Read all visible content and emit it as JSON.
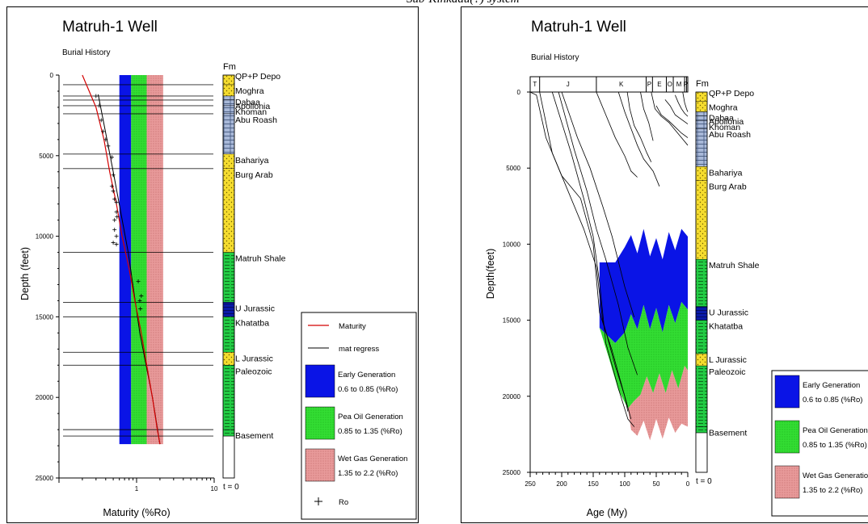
{
  "caption": "Sub-Kinkadu(?) system",
  "colors": {
    "early": "#0a14e6",
    "peak_oil": "#33dd33",
    "wet_gas": "#e89a9a",
    "maturity": "#d40000",
    "sand": "#f5dc2e",
    "carbonate": "#a8b8d8",
    "shale": "#22cc44",
    "jurassic_dark": "#0a1aa8"
  },
  "formation_column": {
    "header": "Fm",
    "footer": "t = 0",
    "formations": [
      {
        "name": "QP+P Depo",
        "top": 0,
        "base": 600,
        "lith": "sand"
      },
      {
        "name": "Moghra",
        "top": 600,
        "base": 1300,
        "lith": "sand"
      },
      {
        "name": "Dabaa",
        "top": 1300,
        "base": 1550,
        "lith": "carbonate"
      },
      {
        "name": "Apollonia",
        "top": 1550,
        "base": 1900,
        "lith": "carbonate"
      },
      {
        "name": "Khoman",
        "top": 1900,
        "base": 2400,
        "lith": "carbonate"
      },
      {
        "name": "Abu Roash",
        "top": 2400,
        "base": 4900,
        "lith": "carbonate"
      },
      {
        "name": "Bahariya",
        "top": 4900,
        "base": 5800,
        "lith": "sand"
      },
      {
        "name": "Burg Arab",
        "top": 5800,
        "base": 11000,
        "lith": "sand"
      },
      {
        "name": "Matruh Shale",
        "top": 11000,
        "base": 14100,
        "lith": "shale"
      },
      {
        "name": "U Jurassic",
        "top": 14100,
        "base": 15000,
        "lith": "jurassic_dark"
      },
      {
        "name": "Khatatba",
        "top": 15000,
        "base": 17200,
        "lith": "shale"
      },
      {
        "name": "L Jurassic",
        "top": 17200,
        "base": 18000,
        "lith": "sand"
      },
      {
        "name": "Paleozoic",
        "top": 18000,
        "base": 22000,
        "lith": "shale"
      },
      {
        "name": "Basement",
        "top": 22000,
        "base": 22400,
        "lith": "shale"
      }
    ]
  },
  "chart_data": [
    {
      "type": "line",
      "title": "Matruh-1 Well",
      "subtitle": "Burial History",
      "xlabel": "Maturity (%Ro)",
      "ylabel": "Depth (feet)",
      "x_scale": "log",
      "xlim": [
        0.1,
        10
      ],
      "ylim": [
        25000,
        0
      ],
      "x_ticks": [
        "1",
        "10"
      ],
      "y_ticks": [
        "0",
        "5000",
        "10000",
        "15000",
        "20000",
        "25000"
      ],
      "bands": [
        {
          "name": "Early Generation",
          "range": "0.6 to 0.85 (%Ro)",
          "x0": 0.6,
          "x1": 0.85,
          "color": "#0a14e6"
        },
        {
          "name": "Pea Oil Generation",
          "range": "0.85 to 1.35 (%Ro)",
          "x0": 0.85,
          "x1": 1.35,
          "color": "#33dd33"
        },
        {
          "name": "Wet Gas Generation",
          "range": "1.35 to 2.2 (%Ro)",
          "x0": 1.35,
          "x1": 2.2,
          "color": "#e89a9a"
        }
      ],
      "formation_tops": [
        0,
        600,
        1300,
        1550,
        1900,
        2400,
        4900,
        5800,
        11000,
        14100,
        15000,
        17200,
        18000,
        22000,
        22400
      ],
      "series": [
        {
          "name": "Maturity",
          "kind": "line",
          "color": "#d40000",
          "points": [
            [
              0.2,
              0
            ],
            [
              0.3,
              2000
            ],
            [
              0.38,
              4000
            ],
            [
              0.45,
              6000
            ],
            [
              0.55,
              8000
            ],
            [
              0.65,
              10000
            ],
            [
              0.8,
              12000
            ],
            [
              0.95,
              14000
            ],
            [
              1.15,
              16000
            ],
            [
              1.35,
              18000
            ],
            [
              1.6,
              20000
            ],
            [
              1.85,
              22000
            ],
            [
              2.0,
              22900
            ]
          ]
        },
        {
          "name": "mat regress",
          "kind": "line",
          "color": "#000000",
          "points": [
            [
              0.32,
              1200
            ],
            [
              0.5,
              6000
            ],
            [
              0.78,
              11000
            ],
            [
              1.1,
              16000
            ],
            [
              1.6,
              20000
            ],
            [
              2.0,
              22900
            ]
          ]
        },
        {
          "name": "Ro",
          "kind": "scatter",
          "color": "#000000",
          "points": [
            [
              0.3,
              1300
            ],
            [
              0.33,
              1900
            ],
            [
              0.35,
              2800
            ],
            [
              0.37,
              3500
            ],
            [
              0.4,
              4000
            ],
            [
              0.43,
              4400
            ],
            [
              0.48,
              5100
            ],
            [
              0.5,
              6200
            ],
            [
              0.48,
              6900
            ],
            [
              0.5,
              7200
            ],
            [
              0.52,
              7700
            ],
            [
              0.55,
              7900
            ],
            [
              0.55,
              8500
            ],
            [
              0.56,
              8800
            ],
            [
              0.52,
              9000
            ],
            [
              0.52,
              9600
            ],
            [
              0.55,
              10000
            ],
            [
              0.5,
              10400
            ],
            [
              0.55,
              10500
            ],
            [
              1.05,
              12800
            ],
            [
              1.15,
              13700
            ],
            [
              1.1,
              14000
            ],
            [
              1.12,
              14500
            ]
          ]
        }
      ],
      "legend": [
        "Maturity",
        "mat regress",
        "Early Generation",
        "Pea Oil Generation",
        "Wet Gas Generation",
        "Ro"
      ],
      "legend_position": "bottom-right"
    },
    {
      "type": "area",
      "title": "Matruh-1 Well",
      "subtitle": "Burial History",
      "xlabel": "Age (My)",
      "ylabel": "Depth(feet)",
      "xlim": [
        250,
        0
      ],
      "ylim": [
        25000,
        0
      ],
      "x_ticks": [
        "250",
        "200",
        "150",
        "100",
        "50",
        "0"
      ],
      "y_ticks": [
        "0",
        "5000",
        "10000",
        "15000",
        "20000",
        "25000"
      ],
      "periods": [
        {
          "label": "T",
          "start": 250,
          "end": 235
        },
        {
          "label": "J",
          "start": 235,
          "end": 145
        },
        {
          "label": "K",
          "start": 145,
          "end": 66
        },
        {
          "label": "P",
          "start": 66,
          "end": 56
        },
        {
          "label": "E",
          "start": 56,
          "end": 34
        },
        {
          "label": "O",
          "start": 34,
          "end": 23
        },
        {
          "label": "M",
          "start": 23,
          "end": 5
        },
        {
          "label": "P",
          "start": 5,
          "end": 2
        },
        {
          "label": "",
          "start": 2,
          "end": 0
        }
      ],
      "zones": [
        {
          "name": "Early Generation",
          "color": "#0a14e6",
          "top": [
            [
              140,
              11200
            ],
            [
              115,
              11200
            ],
            [
              100,
              10200
            ],
            [
              90,
              9400
            ],
            [
              80,
              10600
            ],
            [
              70,
              9000
            ],
            [
              60,
              10800
            ],
            [
              50,
              9600
            ],
            [
              40,
              11000
            ],
            [
              30,
              9200
            ],
            [
              20,
              10400
            ],
            [
              10,
              9000
            ],
            [
              0,
              9500
            ]
          ],
          "base": [
            [
              140,
              15500
            ],
            [
              115,
              16500
            ],
            [
              100,
              15800
            ],
            [
              90,
              14600
            ],
            [
              80,
              15600
            ],
            [
              70,
              14000
            ],
            [
              60,
              15600
            ],
            [
              50,
              14200
            ],
            [
              40,
              15800
            ],
            [
              30,
              14000
            ],
            [
              20,
              15200
            ],
            [
              10,
              13800
            ],
            [
              0,
              14300
            ]
          ]
        },
        {
          "name": "Pea Oil Generation",
          "color": "#33dd33",
          "top": [
            [
              140,
              15500
            ],
            [
              115,
              16500
            ],
            [
              100,
              15800
            ],
            [
              90,
              14600
            ],
            [
              80,
              15600
            ],
            [
              70,
              14000
            ],
            [
              60,
              15600
            ],
            [
              50,
              14200
            ],
            [
              40,
              15800
            ],
            [
              30,
              14000
            ],
            [
              20,
              15200
            ],
            [
              10,
              13800
            ],
            [
              0,
              14300
            ]
          ],
          "base": [
            [
              140,
              15500
            ],
            [
              125,
              17500
            ],
            [
              110,
              19600
            ],
            [
              95,
              20800
            ],
            [
              85,
              20300
            ],
            [
              75,
              19900
            ],
            [
              65,
              18700
            ],
            [
              55,
              19800
            ],
            [
              45,
              18500
            ],
            [
              35,
              19800
            ],
            [
              25,
              18300
            ],
            [
              15,
              19500
            ],
            [
              5,
              18000
            ],
            [
              0,
              18300
            ]
          ]
        },
        {
          "name": "Wet Gas Generation",
          "color": "#e89a9a",
          "top": [
            [
              95,
              20800
            ],
            [
              85,
              20300
            ],
            [
              75,
              19900
            ],
            [
              65,
              18700
            ],
            [
              55,
              19800
            ],
            [
              45,
              18500
            ],
            [
              35,
              19800
            ],
            [
              25,
              18300
            ],
            [
              15,
              19500
            ],
            [
              5,
              18000
            ],
            [
              0,
              18300
            ]
          ],
          "base": [
            [
              95,
              20800
            ],
            [
              90,
              22200
            ],
            [
              80,
              22600
            ],
            [
              70,
              21600
            ],
            [
              60,
              22900
            ],
            [
              50,
              21500
            ],
            [
              40,
              22800
            ],
            [
              30,
              21400
            ],
            [
              20,
              22400
            ],
            [
              10,
              21800
            ],
            [
              0,
              22000
            ]
          ]
        }
      ],
      "burial_curves": [
        [
          [
            250,
            0
          ],
          [
            240,
            200
          ],
          [
            225,
            3000
          ],
          [
            200,
            5500
          ],
          [
            170,
            7000
          ],
          [
            150,
            10000
          ],
          [
            140,
            14500
          ],
          [
            120,
            17000
          ],
          [
            100,
            20000
          ],
          [
            95,
            21000
          ]
        ],
        [
          [
            235,
            0
          ],
          [
            215,
            4000
          ],
          [
            195,
            6000
          ],
          [
            165,
            9000
          ],
          [
            145,
            11500
          ],
          [
            135,
            15000
          ],
          [
            115,
            18000
          ],
          [
            100,
            20000
          ],
          [
            90,
            21500
          ]
        ],
        [
          [
            215,
            0
          ],
          [
            185,
            4000
          ],
          [
            165,
            7000
          ],
          [
            150,
            9500
          ],
          [
            140,
            12500
          ],
          [
            130,
            16500
          ],
          [
            110,
            19500
          ],
          [
            95,
            21500
          ],
          [
            85,
            22000
          ]
        ],
        [
          [
            205,
            0
          ],
          [
            180,
            3800
          ],
          [
            160,
            6500
          ],
          [
            145,
            9000
          ],
          [
            130,
            11000
          ],
          [
            110,
            14000
          ],
          [
            95,
            16800
          ],
          [
            80,
            18600
          ]
        ],
        [
          [
            200,
            0
          ],
          [
            175,
            3000
          ],
          [
            155,
            5000
          ],
          [
            135,
            7500
          ],
          [
            120,
            9500
          ],
          [
            100,
            12800
          ],
          [
            85,
            14800
          ]
        ],
        [
          [
            145,
            0
          ],
          [
            130,
            1500
          ],
          [
            115,
            3000
          ],
          [
            100,
            4200
          ],
          [
            90,
            5200
          ],
          [
            80,
            5600
          ]
        ],
        [
          [
            110,
            0
          ],
          [
            100,
            1300
          ],
          [
            90,
            2400
          ],
          [
            80,
            3500
          ],
          [
            70,
            4400
          ],
          [
            55,
            5200
          ],
          [
            45,
            6200
          ]
        ],
        [
          [
            96,
            0
          ],
          [
            92,
            1100
          ],
          [
            85,
            2200
          ],
          [
            75,
            3000
          ],
          [
            65,
            4000
          ],
          [
            58,
            4600
          ]
        ],
        [
          [
            75,
            0
          ],
          [
            70,
            1100
          ],
          [
            62,
            2000
          ],
          [
            55,
            3200
          ]
        ],
        [
          [
            58,
            0
          ],
          [
            52,
            1100
          ],
          [
            42,
            1600
          ],
          [
            30,
            2000
          ],
          [
            18,
            2600
          ],
          [
            6,
            3200
          ],
          [
            0,
            3500
          ]
        ],
        [
          [
            50,
            900
          ],
          [
            42,
            1500
          ],
          [
            30,
            1900
          ],
          [
            20,
            2300
          ],
          [
            10,
            2700
          ],
          [
            0,
            3000
          ]
        ],
        [
          [
            36,
            500
          ],
          [
            28,
            900
          ],
          [
            20,
            1500
          ],
          [
            10,
            1800
          ],
          [
            0,
            2100
          ]
        ],
        [
          [
            20,
            200
          ],
          [
            15,
            700
          ],
          [
            10,
            1100
          ],
          [
            5,
            1400
          ],
          [
            0,
            1600
          ]
        ],
        [
          [
            8,
            0
          ],
          [
            5,
            700
          ],
          [
            2,
            1100
          ],
          [
            0,
            1300
          ]
        ]
      ],
      "legend": [
        "Early Generation",
        "Pea Oil Generation",
        "Wet Gas Generation"
      ],
      "legend_position": "bottom-right"
    }
  ]
}
